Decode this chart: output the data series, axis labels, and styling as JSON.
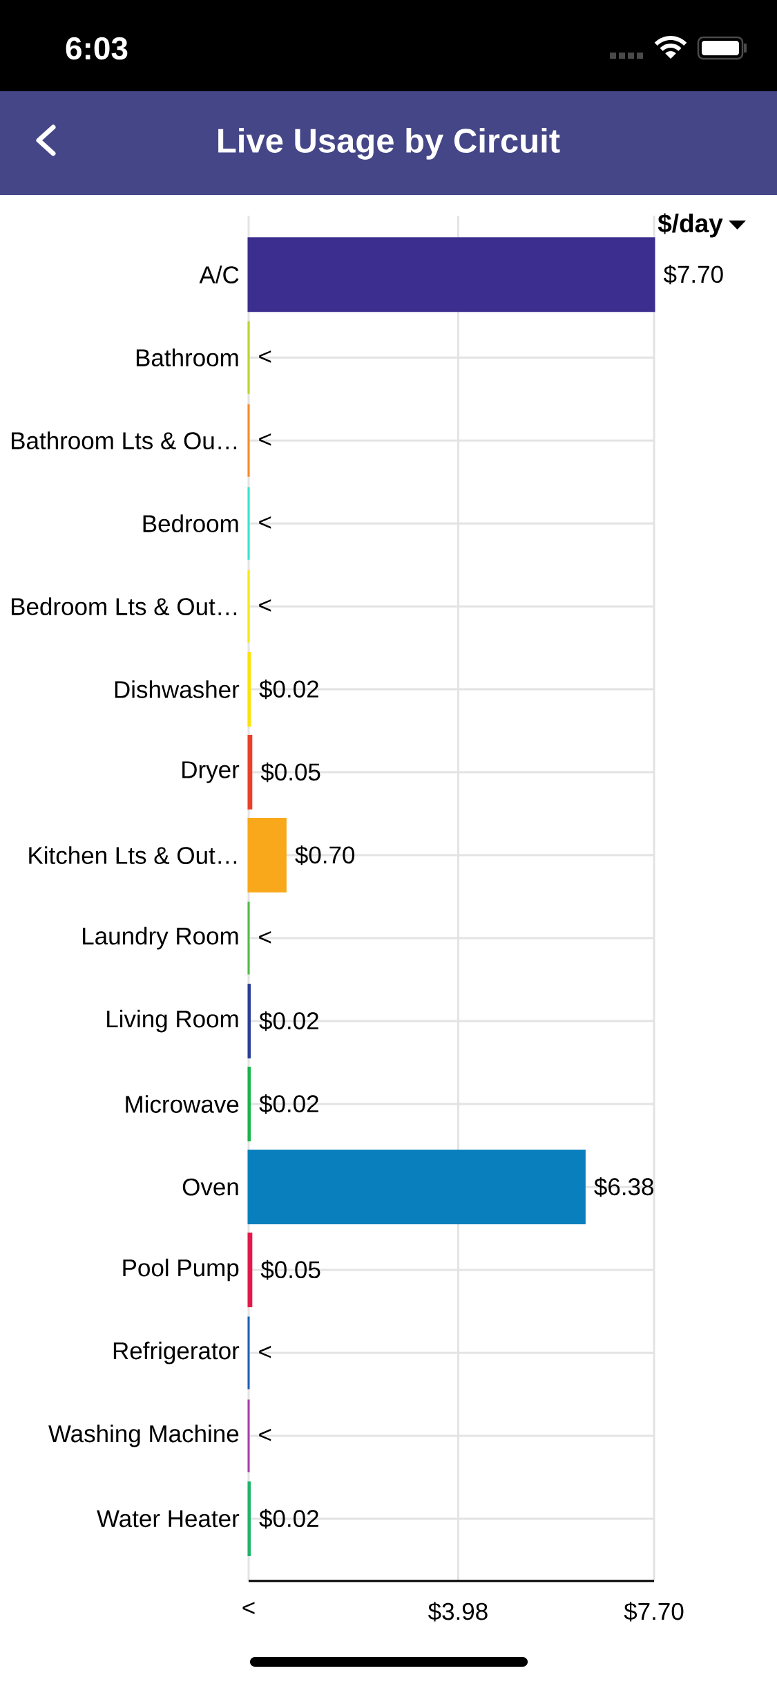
{
  "chart_data": {
    "type": "bar",
    "orientation": "horizontal",
    "title": "Live Usage by Circuit",
    "xlabel": "$/day",
    "categories": [
      "A/C",
      "Bathroom",
      "Bathroom Lts & Ou…",
      "Bedroom",
      "Bedroom Lts & Out…",
      "Dishwasher",
      "Dryer",
      "Kitchen Lts & Out…",
      "Laundry Room",
      "Living Room",
      "Microwave",
      "Oven",
      "Pool Pump",
      "Refrigerator",
      "Washing Machine",
      "Water Heater"
    ],
    "values": [
      7.7,
      0,
      0,
      0,
      0,
      0.02,
      0.05,
      0.7,
      0,
      0.02,
      0.02,
      6.38,
      0.05,
      0,
      0,
      0.02
    ],
    "colors": [
      "#3b2e8e",
      "#b8d432",
      "#f58a2a",
      "#3ae3c9",
      "#f8e71c",
      "#fde200",
      "#e8412d",
      "#f9a81b",
      "#52b848",
      "#2b3d97",
      "#1bb34a",
      "#0a7fbd",
      "#e3194b",
      "#1f5fb5",
      "#a63ea6",
      "#21b36b"
    ],
    "value_labels": [
      "$7.70",
      "<",
      "<",
      "<",
      "<",
      "$0.02",
      "$0.05",
      "$0.70",
      "<",
      "$0.02",
      "$0.02",
      "$6.38",
      "$0.05",
      "<",
      "<",
      "$0.02"
    ],
    "xlim": [
      0,
      7.7
    ],
    "xticks": [
      {
        "value": 0,
        "label": "<"
      },
      {
        "value": 3.98,
        "label": "$3.98"
      },
      {
        "value": 7.7,
        "label": "$7.70"
      }
    ],
    "grid": true,
    "annotations": [
      "6:03"
    ]
  }
}
